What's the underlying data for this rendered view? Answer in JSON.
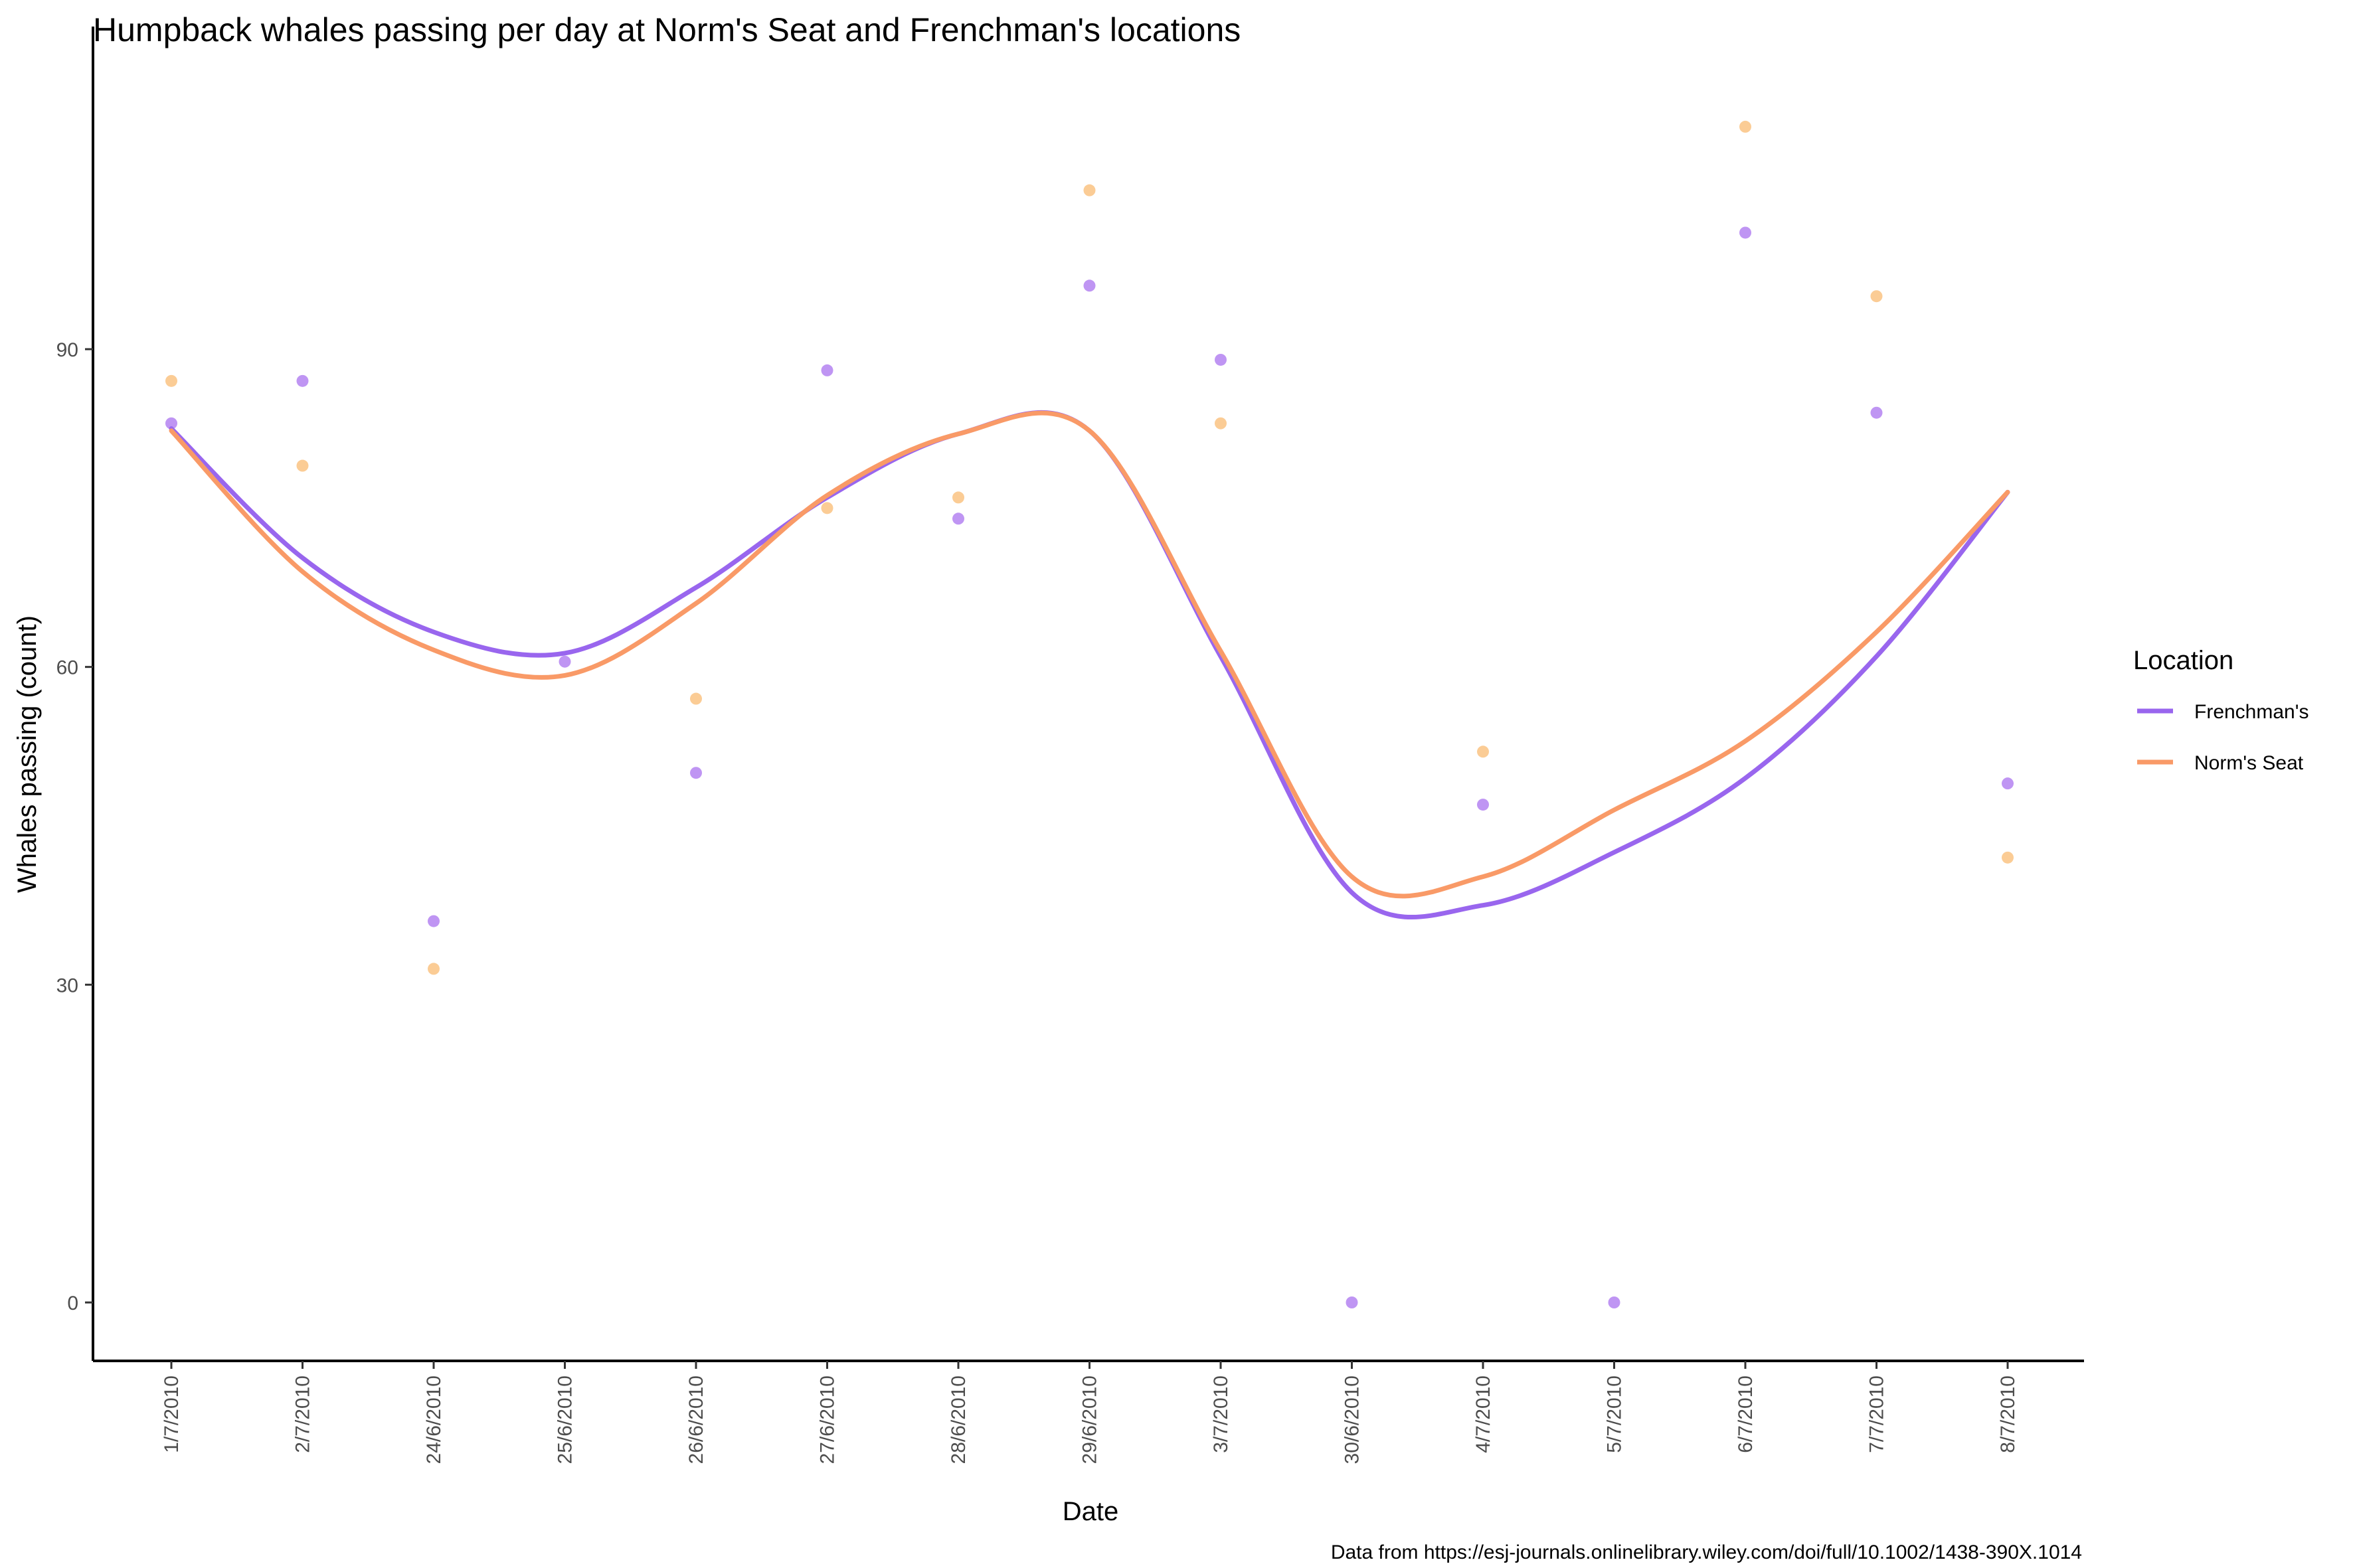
{
  "chart_data": {
    "type": "scatter",
    "title": "Humpback whales passing per day at Norm's Seat and Frenchman's locations",
    "xlabel": "Date",
    "ylabel": "Whales passing (count)",
    "caption": "Data from https://esj-journals.onlinelibrary.wiley.com/doi/full/10.1002/1438-390X.1014",
    "categories": [
      "1/7/2010",
      "2/7/2010",
      "24/6/2010",
      "25/6/2010",
      "26/6/2010",
      "27/6/2010",
      "28/6/2010",
      "29/6/2010",
      "3/7/2010",
      "30/6/2010",
      "4/7/2010",
      "5/7/2010",
      "6/7/2010",
      "7/7/2010",
      "8/7/2010"
    ],
    "ylim": [
      -5,
      116
    ],
    "yticks": [
      0,
      30,
      60,
      90
    ],
    "grid": false,
    "legend": {
      "title": "Location",
      "placement": "right"
    },
    "series": [
      {
        "name": "Frenchman's",
        "line_color": "#9966EE",
        "point_color": "#B889F2",
        "values": [
          83,
          87,
          36,
          60.5,
          50,
          88,
          74,
          96,
          89,
          0,
          47,
          0,
          101,
          84,
          49
        ],
        "smooth": [
          82.5,
          70.3,
          63.3,
          61.3,
          67.5,
          76,
          82,
          82.3,
          61,
          38.7,
          37.5,
          42.5,
          49.5,
          61,
          76.5
        ]
      },
      {
        "name": "Norm's Seat",
        "line_color": "#F99A67",
        "point_color": "#FBC68A",
        "values": [
          87,
          79,
          31.5,
          null,
          57,
          75,
          76,
          105,
          83,
          null,
          52,
          null,
          111,
          95,
          42
        ],
        "smooth": [
          82.3,
          69,
          61.6,
          59.2,
          66,
          76.2,
          82,
          82.3,
          61.5,
          40.2,
          40.2,
          46.5,
          53,
          63.3,
          76.5
        ]
      }
    ]
  }
}
